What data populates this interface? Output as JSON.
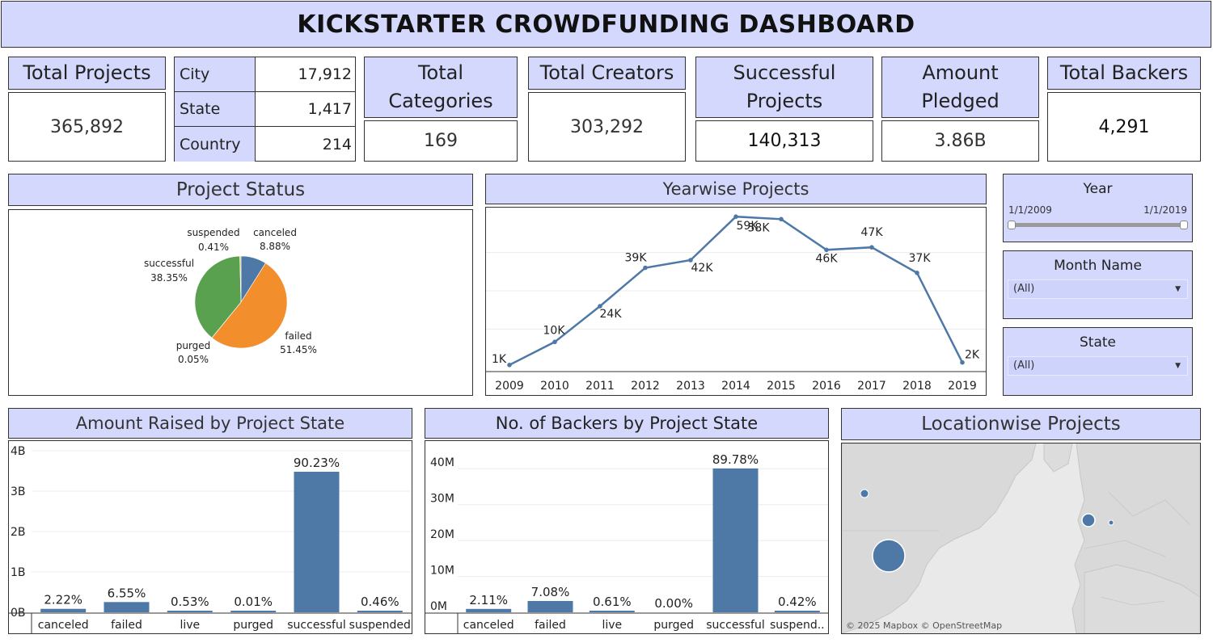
{
  "title": "KICKSTARTER CROWDFUNDING DASHBOARD",
  "kpis": {
    "total_projects": {
      "label": "Total Projects",
      "value": "365,892"
    },
    "total_categories": {
      "label": "Total Categories",
      "value": "169"
    },
    "total_creators": {
      "label": "Total Creators",
      "value": "303,292"
    },
    "successful_projects": {
      "label": "Successful Projects",
      "value": "140,313"
    },
    "amount_pledged": {
      "label": "Amount Pledged",
      "value": "3.86B"
    },
    "total_backers": {
      "label": "Total Backers",
      "value": "4,291"
    }
  },
  "geo": [
    {
      "label": "City",
      "value": "17,912"
    },
    {
      "label": "State",
      "value": "1,417"
    },
    {
      "label": "Country",
      "value": "214"
    }
  ],
  "filters": {
    "year": {
      "title": "Year",
      "start": "1/1/2009",
      "end": "1/1/2019"
    },
    "month": {
      "title": "Month Name",
      "selected": "(All)"
    },
    "state": {
      "title": "State",
      "selected": "(All)"
    }
  },
  "map": {
    "title": "Locationwise Projects",
    "attribution": "© 2025 Mapbox © OpenStreetMap"
  },
  "colors": {
    "header_bg": "#d4d8fc",
    "bar": "#4e79a7",
    "line": "#4e79a7",
    "canceled": "#4e79a7",
    "failed": "#f28e2b",
    "purged": "#e15759",
    "successful": "#59a14f",
    "suspended": "#edc948"
  },
  "chart_data": [
    {
      "type": "pie",
      "title": "Project Status",
      "slices": [
        {
          "label": "canceled",
          "value": 8.88,
          "text": "8.88%"
        },
        {
          "label": "failed",
          "value": 51.45,
          "text": "51.45%"
        },
        {
          "label": "purged",
          "value": 0.05,
          "text": "0.05%"
        },
        {
          "label": "successful",
          "value": 38.35,
          "text": "38.35%"
        },
        {
          "label": "suspended",
          "value": 0.41,
          "text": "0.41%"
        }
      ]
    },
    {
      "type": "line",
      "title": "Yearwise Projects",
      "x": [
        "2009",
        "2010",
        "2011",
        "2012",
        "2013",
        "2014",
        "2015",
        "2016",
        "2017",
        "2018",
        "2019"
      ],
      "values": [
        1000,
        10000,
        24000,
        39000,
        42000,
        59000,
        58000,
        46000,
        47000,
        37000,
        2000
      ],
      "labels": [
        "1K",
        "10K",
        "24K",
        "39K",
        "42K",
        "59K",
        "58K",
        "46K",
        "47K",
        "37K",
        "2K"
      ],
      "ylim": [
        0,
        60000
      ]
    },
    {
      "type": "bar",
      "title": "Amount Raised by Project State",
      "categories": [
        "canceled",
        "failed",
        "live",
        "purged",
        "successful",
        "suspended"
      ],
      "values": [
        85700000,
        253000000,
        20500000,
        386000,
        3480000000,
        17800000
      ],
      "labels": [
        "2.22%",
        "6.55%",
        "0.53%",
        "0.01%",
        "90.23%",
        "0.46%"
      ],
      "ylim": [
        0,
        4000000000
      ],
      "yticks": [
        {
          "value": 0,
          "label": "0B"
        },
        {
          "value": 1000000000,
          "label": "1B"
        },
        {
          "value": 2000000000,
          "label": "2B"
        },
        {
          "value": 3000000000,
          "label": "3B"
        },
        {
          "value": 4000000000,
          "label": "4B"
        }
      ]
    },
    {
      "type": "bar",
      "title": "No. of Backers by Project State",
      "categories": [
        "canceled",
        "failed",
        "live",
        "purged",
        "successful",
        "suspend.."
      ],
      "values": [
        940000,
        3160000,
        272000,
        0,
        40080000,
        187000
      ],
      "labels": [
        "2.11%",
        "7.08%",
        "0.61%",
        "0.00%",
        "89.78%",
        "0.42%"
      ],
      "ylim": [
        0,
        45000000
      ],
      "yticks": [
        {
          "value": 0,
          "label": "0M"
        },
        {
          "value": 10000000,
          "label": "10M"
        },
        {
          "value": 20000000,
          "label": "20M"
        },
        {
          "value": 30000000,
          "label": "30M"
        },
        {
          "value": 40000000,
          "label": "40M"
        }
      ]
    }
  ]
}
